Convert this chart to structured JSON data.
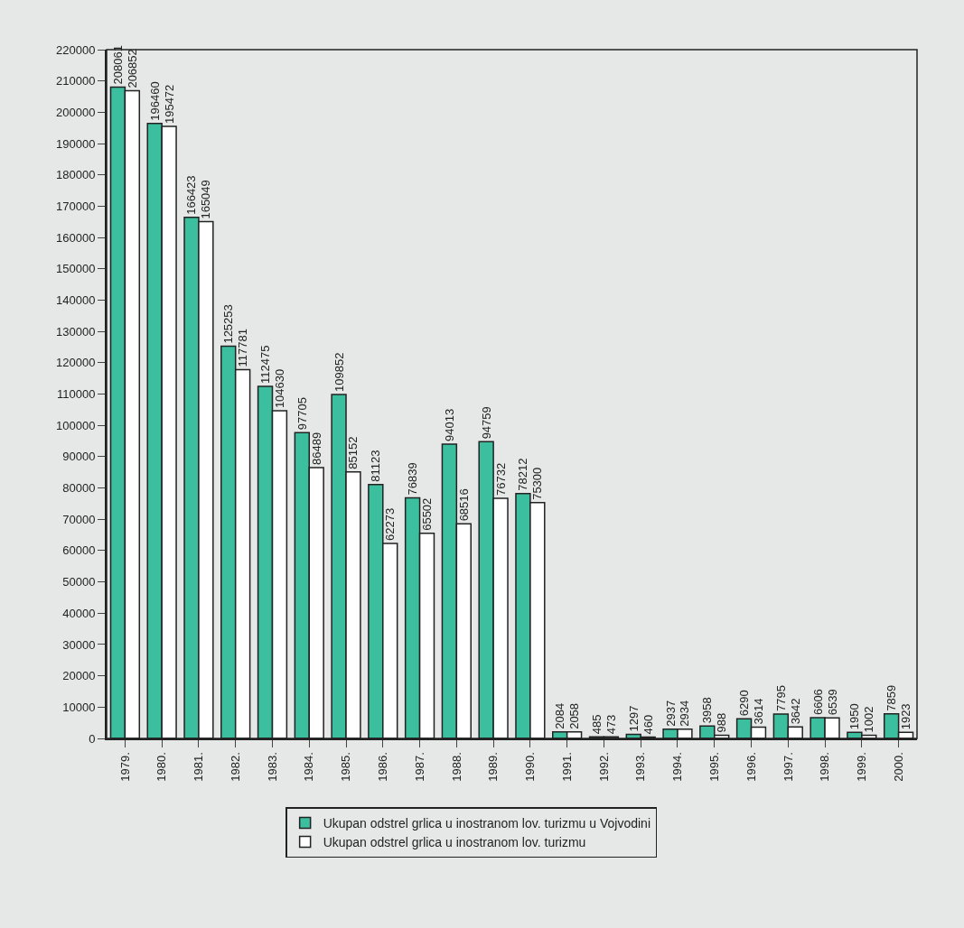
{
  "chart_data": {
    "type": "bar",
    "categories": [
      "1979.",
      "1980.",
      "1981.",
      "1982.",
      "1983.",
      "1984.",
      "1985.",
      "1986.",
      "1987.",
      "1988.",
      "1989.",
      "1990.",
      "1991.",
      "1992.",
      "1993.",
      "1994.",
      "1995.",
      "1996.",
      "1997.",
      "1998.",
      "1999.",
      "2000."
    ],
    "series": [
      {
        "name": "Ukupan odstrel grlica u inostranom lov. turizmu u Vojvodini",
        "color": "#3cbf9f",
        "values": [
          208061,
          196460,
          166423,
          125253,
          112475,
          97705,
          109852,
          81123,
          76839,
          94013,
          94759,
          78212,
          2084,
          485,
          1297,
          2937,
          3958,
          6290,
          7795,
          6606,
          1950,
          7859
        ]
      },
      {
        "name": "Ukupan odstrel grlica u inostranom lov. turizmu",
        "color": "#ffffff",
        "values": [
          206852,
          195472,
          165049,
          117781,
          104630,
          86489,
          85152,
          62273,
          65502,
          68516,
          76732,
          75300,
          2058,
          473,
          460,
          2934,
          988,
          3614,
          3642,
          6539,
          1002,
          1923
        ]
      }
    ],
    "ylim": [
      0,
      220000
    ],
    "yticks": [
      0,
      10000,
      20000,
      30000,
      40000,
      50000,
      60000,
      70000,
      80000,
      90000,
      100000,
      110000,
      120000,
      130000,
      140000,
      150000,
      160000,
      170000,
      180000,
      190000,
      200000,
      210000,
      220000
    ],
    "grid": false,
    "data_labels": true,
    "legend": "bottom"
  }
}
